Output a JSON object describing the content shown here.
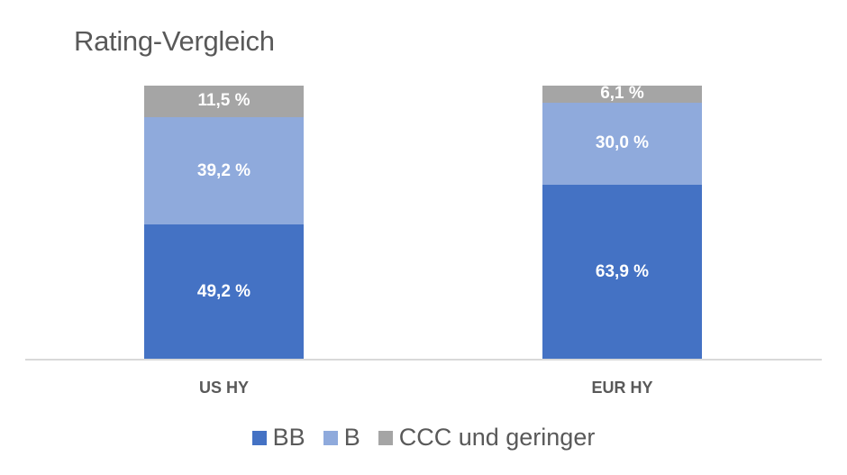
{
  "chart_data": {
    "type": "bar",
    "stacked": true,
    "title": "Rating-Vergleich",
    "categories": [
      "US HY",
      "EUR HY"
    ],
    "series": [
      {
        "name": "BB",
        "color": "#4472c4",
        "values": [
          49.2,
          63.9
        ],
        "labels": [
          "49,2 %",
          "63,9 %"
        ]
      },
      {
        "name": "B",
        "color": "#8faadc",
        "values": [
          39.2,
          30.0
        ],
        "labels": [
          "39,2 %",
          "30,0 %"
        ]
      },
      {
        "name": "CCC und geringer",
        "color": "#a5a5a5",
        "values": [
          11.5,
          6.1
        ],
        "labels": [
          "11,5 %",
          "6,1 %"
        ]
      }
    ],
    "xlabel": "",
    "ylabel": "",
    "ylim": [
      0,
      100
    ],
    "grid": false,
    "legend_position": "bottom"
  },
  "legend": [
    {
      "label": "BB",
      "color": "#4472c4"
    },
    {
      "label": "B",
      "color": "#8faadc"
    },
    {
      "label": "CCC und geringer",
      "color": "#a5a5a5"
    }
  ]
}
